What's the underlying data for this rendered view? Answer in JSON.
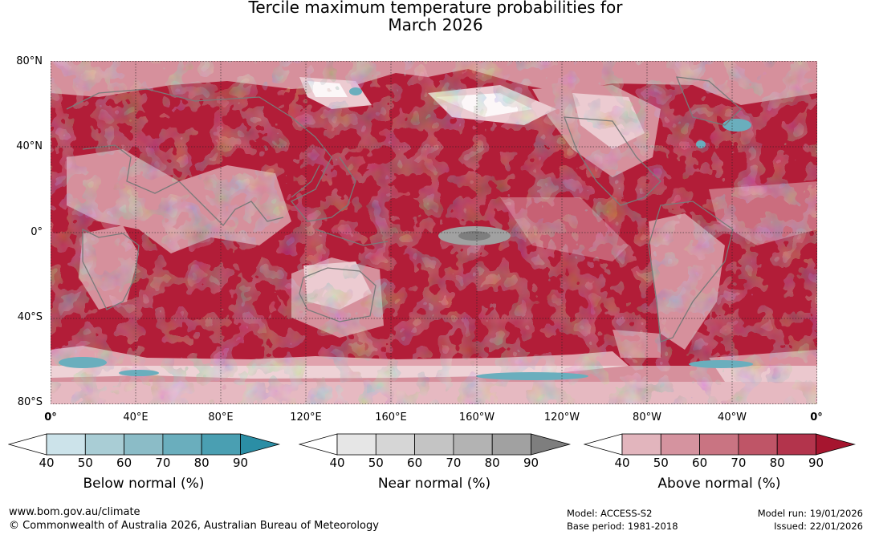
{
  "title_line1": "Tercile maximum temperature probabilities for",
  "title_line2": "March 2026",
  "lat_labels": [
    "80°N",
    "40°N",
    "0°",
    "40°S",
    "80°S"
  ],
  "lon_labels": [
    "0°",
    "40°E",
    "80°E",
    "120°E",
    "160°E",
    "160°W",
    "120°W",
    "80°W",
    "40°W",
    "0°"
  ],
  "colorbars": [
    {
      "name": "below",
      "label": "Below normal (%)",
      "ticks": [
        "40",
        "50",
        "60",
        "70",
        "80",
        "90"
      ],
      "colors": [
        "#ffffff",
        "#cce3ea",
        "#a9cdd5",
        "#8bbcc7",
        "#6aaebd",
        "#4a9fb2",
        "#2b8ea5"
      ]
    },
    {
      "name": "near",
      "label": "Near normal (%)",
      "ticks": [
        "40",
        "50",
        "60",
        "70",
        "80",
        "90"
      ],
      "colors": [
        "#ffffff",
        "#e6e6e6",
        "#d6d6d6",
        "#c4c4c4",
        "#b3b3b3",
        "#a1a1a1",
        "#7e7e7e"
      ]
    },
    {
      "name": "above",
      "label": "Above normal (%)",
      "ticks": [
        "40",
        "50",
        "60",
        "70",
        "80",
        "90"
      ],
      "colors": [
        "#ffffff",
        "#e2b5bd",
        "#d5939f",
        "#c97482",
        "#bf5567",
        "#b3344c",
        "#a6152f"
      ]
    }
  ],
  "footer": {
    "website": "www.bom.gov.au/climate",
    "copyright": "© Commonwealth of Australia 2026, Australian Bureau of Meteorology",
    "model": "Model: ACCESS-S2",
    "base_period": "Base period: 1981-2018",
    "model_run": "Model run: 19/01/2026",
    "issued": "Issued: 22/01/2026"
  }
}
